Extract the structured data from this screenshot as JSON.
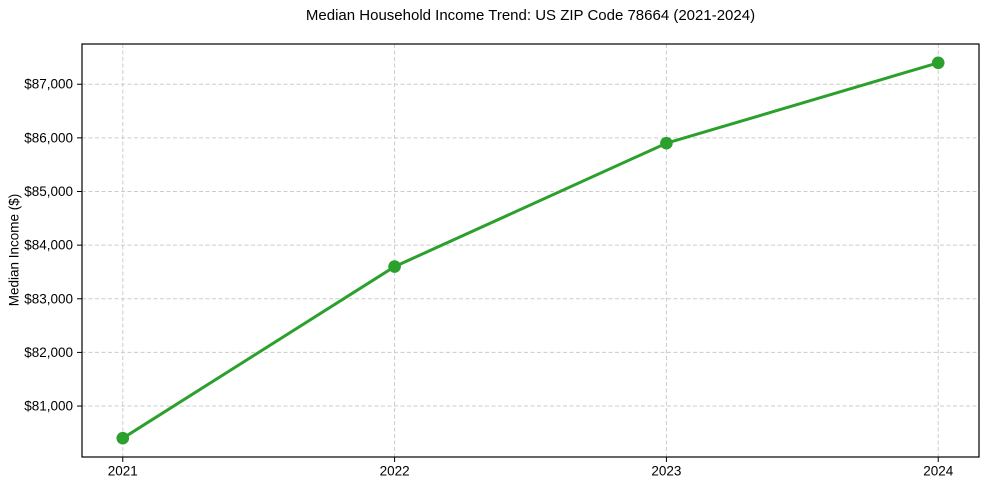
{
  "chart_data": {
    "type": "line",
    "title": "Median Household Income Trend: US ZIP Code 78664 (2021-2024)",
    "xlabel": "",
    "ylabel": "Median Income ($)",
    "x": [
      2021,
      2022,
      2023,
      2024
    ],
    "y": [
      80400,
      83600,
      85900,
      87400
    ],
    "x_tick_labels": [
      "2021",
      "2022",
      "2023",
      "2024"
    ],
    "y_ticks": [
      81000,
      82000,
      83000,
      84000,
      85000,
      86000,
      87000
    ],
    "y_tick_labels": [
      "$81,000",
      "$82,000",
      "$83,000",
      "$84,000",
      "$85,000",
      "$86,000",
      "$87,000"
    ],
    "xlim": [
      2020.85,
      2024.15
    ],
    "ylim": [
      80050,
      87750
    ],
    "grid": true,
    "grid_style": "dashed",
    "legend": null,
    "colors": {
      "line": "#2ca02c",
      "marker": "#2ca02c",
      "grid": "#cccccc",
      "spine": "#000000",
      "background": "#ffffff",
      "text": "#000000"
    }
  }
}
